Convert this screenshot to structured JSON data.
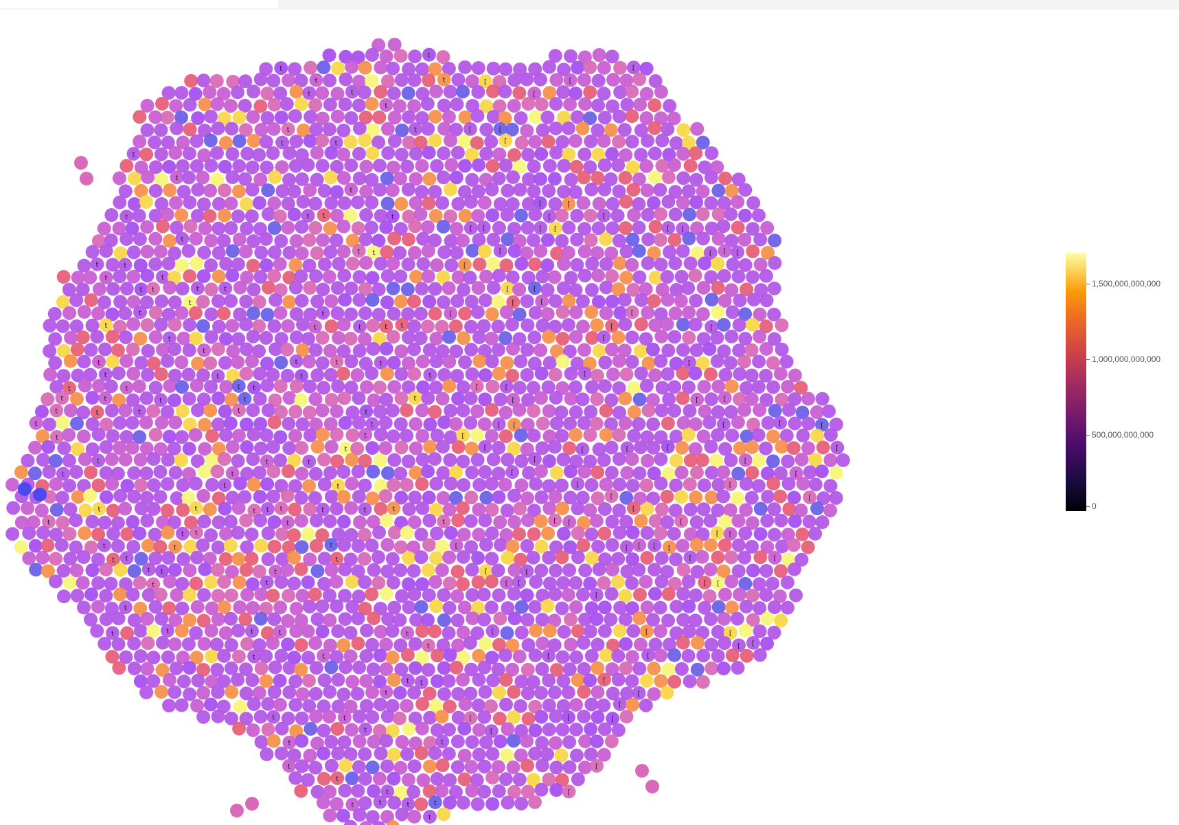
{
  "colorbar": {
    "ticks": [
      {
        "label": "1,500,000,000,000",
        "value": 1500000000000
      },
      {
        "label": "1,000,000,000,000",
        "value": 1000000000000
      },
      {
        "label": "500,000,000,000",
        "value": 500000000000
      },
      {
        "label": "0",
        "value": 0
      }
    ],
    "range": [
      0,
      1700000000000
    ],
    "colorscale": "plasma-magma",
    "colors": [
      "#000004",
      "#4a0c6b",
      "#a52c60",
      "#ed6925",
      "#fcffa4"
    ]
  },
  "network": {
    "node_palette": [
      "#b259e6",
      "#c95fd4",
      "#d86ab8",
      "#a850f0",
      "#e8607a",
      "#f7914e",
      "#f9d64a",
      "#6d62e8",
      "#f6f67a"
    ],
    "edge_color": "#9a9a9a",
    "node_label_glyphs": [
      "t",
      "["
    ]
  }
}
